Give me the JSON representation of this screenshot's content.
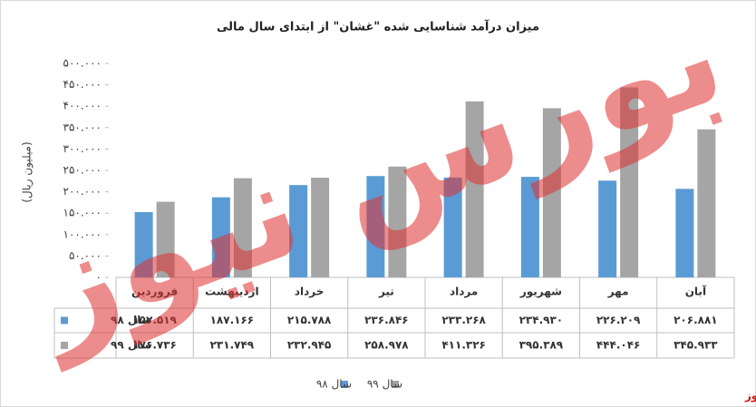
{
  "chart_data": {
    "type": "bar",
    "title": "میزان درآمد شناسایی شده \"غشان\" از ابتدای سال مالی",
    "ylabel": "(میلیون ریال)",
    "watermark": "بورس نیوز",
    "source": "بورس نیوز",
    "categories": [
      "فروردین",
      "اردیبهشت",
      "خرداد",
      "تیر",
      "مرداد",
      "شهریور",
      "مهر",
      "آبان"
    ],
    "series": [
      {
        "name": "سال ۹۸",
        "color": "#5b9bd5",
        "values": [
          152519,
          187166,
          215788,
          236846,
          233268,
          234930,
          226209,
          206881
        ],
        "value_labels": [
          "۱۵۲.۵۱۹",
          "۱۸۷.۱۶۶",
          "۲۱۵.۷۸۸",
          "۲۳۶.۸۴۶",
          "۲۳۳.۲۶۸",
          "۲۳۴.۹۳۰",
          "۲۲۶.۲۰۹",
          "۲۰۶.۸۸۱"
        ]
      },
      {
        "name": "سال ۹۹",
        "color": "#a5a5a5",
        "values": [
          176736,
          231749,
          232945,
          258978,
          411326,
          395389,
          444046,
          345933
        ],
        "value_labels": [
          "۱۷۶.۷۳۶",
          "۲۳۱.۷۴۹",
          "۲۳۲.۹۴۵",
          "۲۵۸.۹۷۸",
          "۴۱۱.۳۲۶",
          "۳۹۵.۳۸۹",
          "۴۴۴.۰۴۶",
          "۳۴۵.۹۳۳"
        ]
      }
    ],
    "ylim": [
      0,
      500000
    ],
    "yticks": [
      {
        "value": 0,
        "label": "۰"
      },
      {
        "value": 50000,
        "label": "۵۰.۰۰۰"
      },
      {
        "value": 100000,
        "label": "۱۰۰.۰۰۰"
      },
      {
        "value": 150000,
        "label": "۱۵۰.۰۰۰"
      },
      {
        "value": 200000,
        "label": "۲۰۰.۰۰۰"
      },
      {
        "value": 250000,
        "label": "۲۵۰.۰۰۰"
      },
      {
        "value": 300000,
        "label": "۳۰۰.۰۰۰"
      },
      {
        "value": 350000,
        "label": "۳۵۰.۰۰۰"
      },
      {
        "value": 400000,
        "label": "۴۰۰.۰۰۰"
      },
      {
        "value": 450000,
        "label": "۴۵۰.۰۰۰"
      },
      {
        "value": 500000,
        "label": "۵۰۰.۰۰۰"
      }
    ],
    "grid": false
  }
}
